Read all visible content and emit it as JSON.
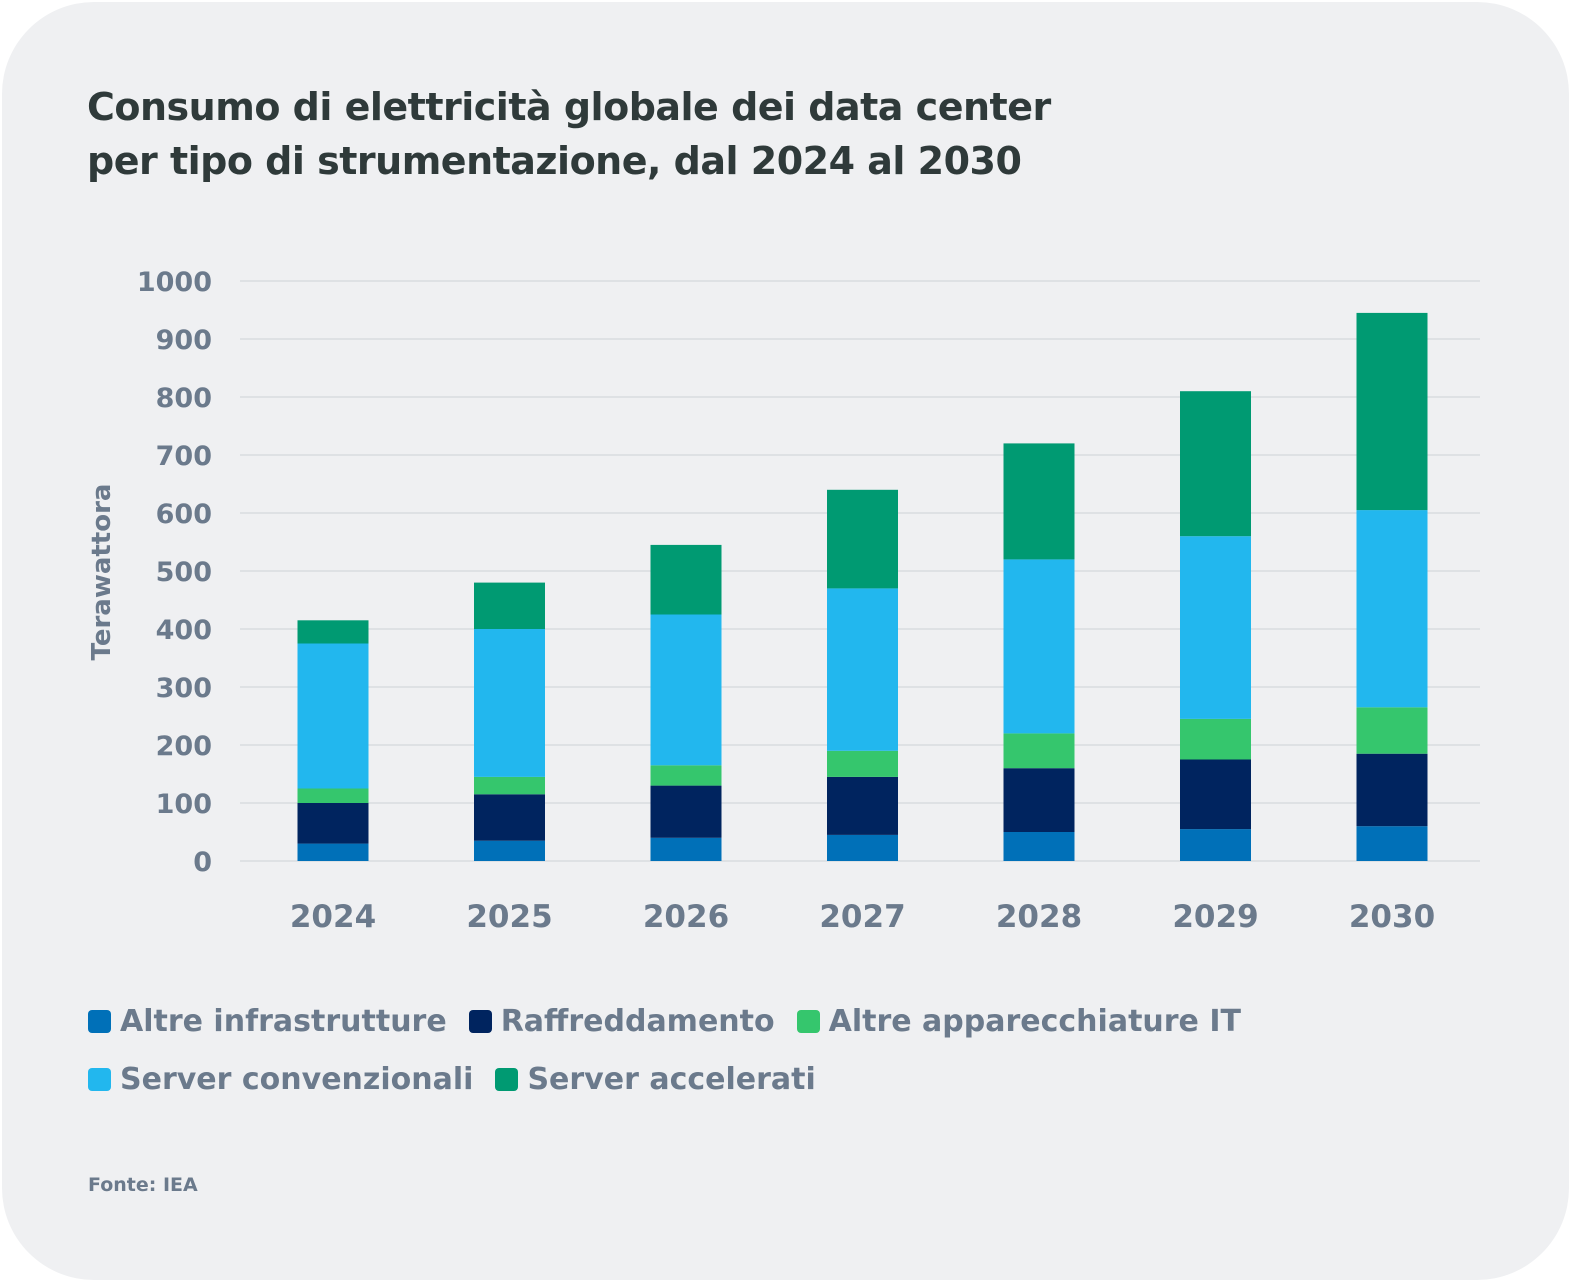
{
  "title_lines": [
    "Consumo di elettricità globale dei data center",
    "per tipo di strumentazione, dal 2024 al 2030"
  ],
  "source": "Fonte: IEA",
  "chart_data": {
    "type": "bar",
    "stacked": true,
    "title": "Consumo di elettricità globale dei data center per tipo di strumentazione, dal 2024 al 2030",
    "xlabel": "",
    "ylabel": "Terawattora",
    "ylim": [
      0,
      1000
    ],
    "yticks": [
      0,
      100,
      200,
      300,
      400,
      500,
      600,
      700,
      800,
      900,
      1000
    ],
    "grid": true,
    "legend_position": "bottom",
    "categories": [
      "2024",
      "2025",
      "2026",
      "2027",
      "2028",
      "2029",
      "2030"
    ],
    "series": [
      {
        "name": "Altre infrastrutture",
        "color": "#0070b8",
        "values": [
          30,
          35,
          40,
          45,
          50,
          55,
          60
        ]
      },
      {
        "name": "Raffreddamento",
        "color": "#00245f",
        "values": [
          70,
          80,
          90,
          100,
          110,
          120,
          125
        ]
      },
      {
        "name": "Altre apparecchiature IT",
        "color": "#35c66d",
        "values": [
          25,
          30,
          35,
          45,
          60,
          70,
          80
        ]
      },
      {
        "name": "Server convenzionali",
        "color": "#22b7ee",
        "values": [
          250,
          255,
          260,
          280,
          300,
          315,
          340
        ]
      },
      {
        "name": "Server accelerati",
        "color": "#009a72",
        "values": [
          40,
          80,
          120,
          170,
          200,
          250,
          340
        ]
      }
    ],
    "totals": [
      415,
      480,
      545,
      640,
      720,
      810,
      945
    ]
  }
}
